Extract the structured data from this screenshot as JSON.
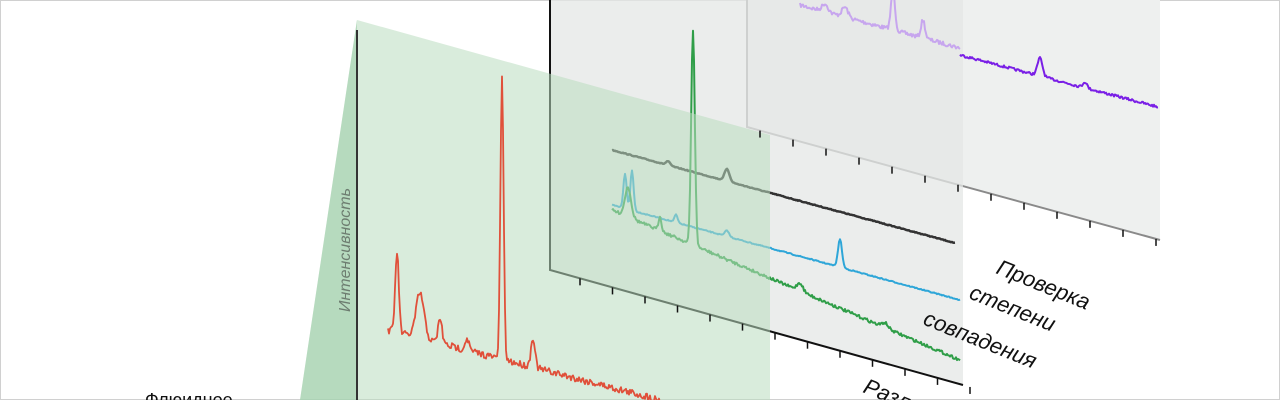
{
  "labels": {
    "y_axis": "Интенсивность",
    "match_check": [
      "Проверка",
      "степени",
      "совпадения"
    ],
    "x_axis": "Разл",
    "sample": "Флюидное"
  }
}
